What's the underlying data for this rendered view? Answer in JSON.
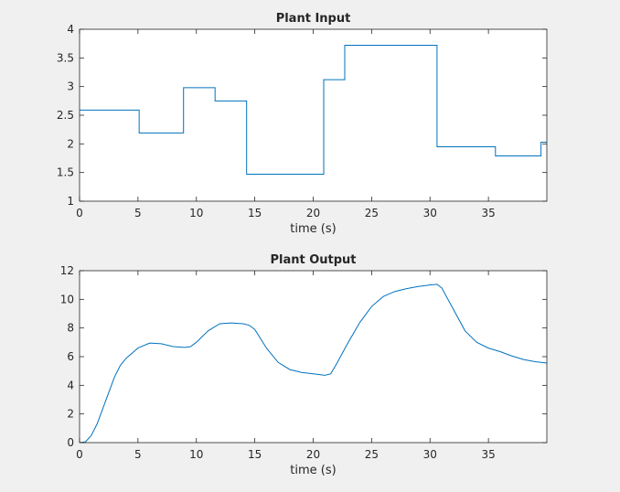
{
  "colors": {
    "figure_background": "#f0f0f0",
    "axes_background": "#ffffff",
    "axes_frame": "#262626",
    "series_line": "#0072bd"
  },
  "chart_data": [
    {
      "type": "line",
      "title": "Plant Input",
      "xlabel": "time (s)",
      "ylabel": "",
      "xlim": [
        0,
        40
      ],
      "ylim": [
        1,
        4
      ],
      "xticks": [
        0,
        5,
        10,
        15,
        20,
        25,
        30,
        35
      ],
      "yticks": [
        1,
        1.5,
        2,
        2.5,
        3,
        3.5,
        4
      ],
      "grid": false,
      "legend": "none",
      "step": true,
      "series": [
        {
          "x": [
            0,
            5.1,
            5.1,
            8.9,
            8.9,
            11.6,
            11.6,
            14.3,
            14.3,
            20.9,
            20.9,
            22.7,
            22.7,
            30.6,
            30.6,
            35.6,
            35.6,
            39.5,
            39.5,
            40
          ],
          "y": [
            2.59,
            2.59,
            2.19,
            2.19,
            2.98,
            2.98,
            2.75,
            2.75,
            1.47,
            1.47,
            3.12,
            3.12,
            3.72,
            3.72,
            1.95,
            1.95,
            1.79,
            1.79,
            2.03,
            2.03
          ]
        }
      ]
    },
    {
      "type": "line",
      "title": "Plant Output",
      "xlabel": "time (s)",
      "ylabel": "",
      "xlim": [
        0,
        40
      ],
      "ylim": [
        0,
        12
      ],
      "xticks": [
        0,
        5,
        10,
        15,
        20,
        25,
        30,
        35
      ],
      "yticks": [
        0,
        2,
        4,
        6,
        8,
        10,
        12
      ],
      "grid": false,
      "legend": "none",
      "step": false,
      "series": [
        {
          "x": [
            0,
            0.5,
            1,
            1.5,
            2,
            2.5,
            3,
            3.5,
            4,
            5,
            6,
            7,
            8,
            9,
            9.5,
            10,
            11,
            12,
            13,
            14,
            14.5,
            15,
            16,
            17,
            18,
            19,
            20,
            21,
            21.5,
            22,
            23,
            24,
            25,
            26,
            27,
            28,
            29,
            30,
            30.6,
            31,
            32,
            33,
            34,
            35,
            36,
            37,
            38,
            39,
            40
          ],
          "y": [
            0,
            0.05,
            0.5,
            1.3,
            2.4,
            3.5,
            4.6,
            5.4,
            5.9,
            6.6,
            6.95,
            6.9,
            6.7,
            6.65,
            6.7,
            7.0,
            7.8,
            8.3,
            8.35,
            8.3,
            8.2,
            7.9,
            6.6,
            5.6,
            5.1,
            4.9,
            4.8,
            4.7,
            4.8,
            5.5,
            7.0,
            8.4,
            9.5,
            10.2,
            10.55,
            10.75,
            10.9,
            11.0,
            11.05,
            10.8,
            9.3,
            7.8,
            7.0,
            6.6,
            6.35,
            6.05,
            5.8,
            5.65,
            5.55
          ]
        }
      ]
    }
  ]
}
